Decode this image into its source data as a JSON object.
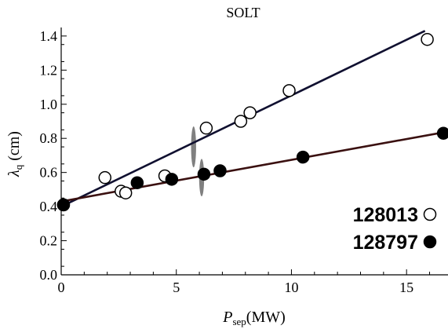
{
  "chart_data": {
    "type": "scatter",
    "title": "SOLT",
    "xlabel": {
      "main": "P",
      "sub": "sep",
      "unit": "(MW)"
    },
    "ylabel": {
      "main": "λ",
      "sub": "q",
      "unit": " (cm)"
    },
    "xlim": [
      0,
      16.8
    ],
    "ylim": [
      0,
      1.45
    ],
    "x_ticks": [
      0,
      5,
      10,
      15
    ],
    "y_ticks": [
      0.0,
      0.2,
      0.4,
      0.6,
      0.8,
      1.0,
      1.2,
      1.4
    ],
    "x_tick_labels": [
      "0",
      "5",
      "10",
      "15"
    ],
    "y_tick_labels": [
      "0.0",
      "0.2",
      "0.4",
      "0.6",
      "0.8",
      "1.0",
      "1.2",
      "1.4"
    ],
    "grid": false,
    "legend_position": "bottom-right",
    "series": [
      {
        "name": "128013",
        "marker": "open-circle",
        "points": [
          {
            "x": 0.1,
            "y": 0.41
          },
          {
            "x": 1.9,
            "y": 0.57
          },
          {
            "x": 2.6,
            "y": 0.49
          },
          {
            "x": 2.8,
            "y": 0.48
          },
          {
            "x": 4.5,
            "y": 0.58
          },
          {
            "x": 6.3,
            "y": 0.86
          },
          {
            "x": 7.8,
            "y": 0.9
          },
          {
            "x": 8.2,
            "y": 0.95
          },
          {
            "x": 9.9,
            "y": 1.08
          },
          {
            "x": 15.9,
            "y": 1.38
          }
        ],
        "fit": {
          "x": [
            0,
            15.8
          ],
          "y": [
            0.4,
            1.43
          ]
        }
      },
      {
        "name": "128797",
        "marker": "filled-circle",
        "points": [
          {
            "x": 0.1,
            "y": 0.41
          },
          {
            "x": 3.3,
            "y": 0.54
          },
          {
            "x": 4.8,
            "y": 0.56
          },
          {
            "x": 6.2,
            "y": 0.59
          },
          {
            "x": 6.9,
            "y": 0.61
          },
          {
            "x": 10.5,
            "y": 0.69
          },
          {
            "x": 16.6,
            "y": 0.83
          }
        ],
        "fit": {
          "x": [
            0,
            16.8
          ],
          "y": [
            0.43,
            0.84
          ]
        }
      }
    ],
    "error_bars": [
      {
        "x": 5.75,
        "y": 0.75,
        "dy": 0.12
      },
      {
        "x": 6.1,
        "y": 0.57,
        "dy": 0.11
      }
    ]
  }
}
